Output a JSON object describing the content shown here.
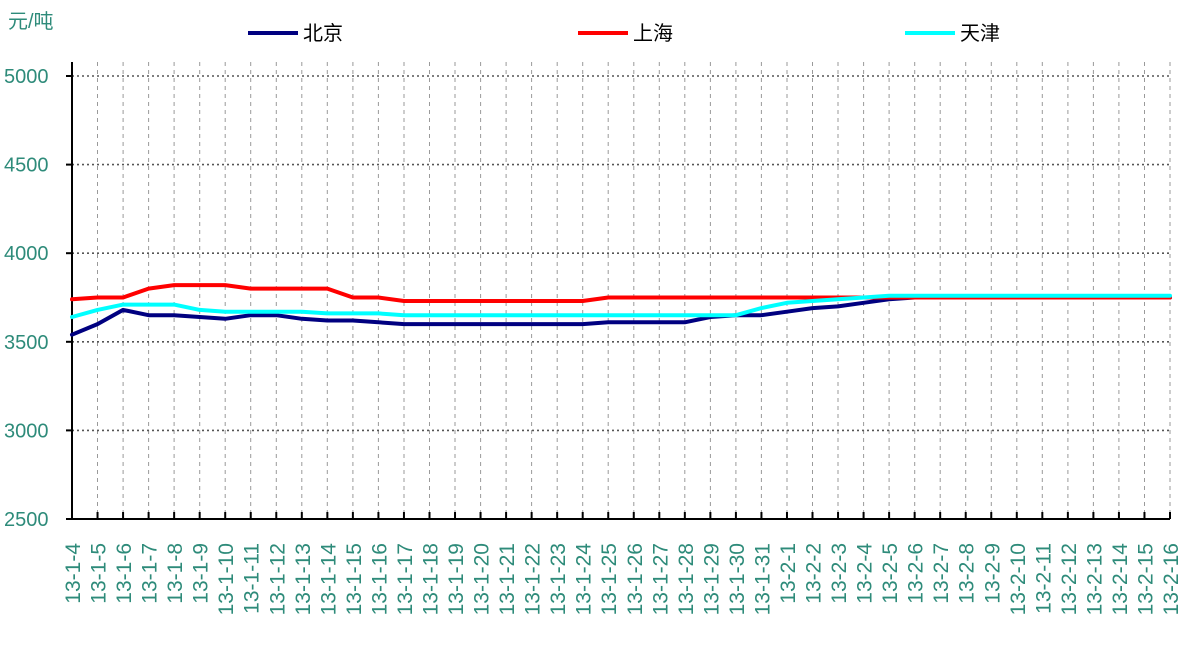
{
  "chart_data": {
    "type": "line",
    "y_unit_label": "元/吨",
    "ylim": [
      2500,
      5000
    ],
    "yticks": [
      2500,
      3000,
      3500,
      4000,
      4500,
      5000
    ],
    "grid": true,
    "legend_position": "top",
    "categories": [
      "13-1-4",
      "13-1-5",
      "13-1-6",
      "13-1-7",
      "13-1-8",
      "13-1-9",
      "13-1-10",
      "13-1-11",
      "13-1-12",
      "13-1-13",
      "13-1-14",
      "13-1-15",
      "13-1-16",
      "13-1-17",
      "13-1-18",
      "13-1-19",
      "13-1-20",
      "13-1-21",
      "13-1-22",
      "13-1-23",
      "13-1-24",
      "13-1-25",
      "13-1-26",
      "13-1-27",
      "13-1-28",
      "13-1-29",
      "13-1-30",
      "13-1-31",
      "13-2-1",
      "13-2-2",
      "13-2-3",
      "13-2-4",
      "13-2-5",
      "13-2-6",
      "13-2-7",
      "13-2-8",
      "13-2-9",
      "13-2-10",
      "13-2-11",
      "13-2-12",
      "13-2-13",
      "13-2-14",
      "13-2-15",
      "13-2-16"
    ],
    "series": [
      {
        "name": "北京",
        "color": "#000080",
        "values": [
          3540,
          3600,
          3680,
          3650,
          3650,
          3640,
          3630,
          3650,
          3650,
          3630,
          3620,
          3620,
          3610,
          3600,
          3600,
          3600,
          3600,
          3600,
          3600,
          3600,
          3600,
          3610,
          3610,
          3610,
          3610,
          3640,
          3650,
          3650,
          3670,
          3690,
          3700,
          3720,
          3740,
          3750,
          3750,
          3750,
          3750,
          3750,
          3750,
          3750,
          3750,
          3750,
          3750,
          3750
        ]
      },
      {
        "name": "上海",
        "color": "#ff0000",
        "values": [
          3740,
          3750,
          3750,
          3800,
          3820,
          3820,
          3820,
          3800,
          3800,
          3800,
          3800,
          3750,
          3750,
          3730,
          3730,
          3730,
          3730,
          3730,
          3730,
          3730,
          3730,
          3750,
          3750,
          3750,
          3750,
          3750,
          3750,
          3750,
          3750,
          3750,
          3750,
          3750,
          3750,
          3750,
          3750,
          3750,
          3750,
          3750,
          3750,
          3750,
          3750,
          3750,
          3750,
          3750
        ]
      },
      {
        "name": "天津",
        "color": "#00ffff",
        "values": [
          3640,
          3680,
          3710,
          3710,
          3710,
          3680,
          3670,
          3670,
          3670,
          3670,
          3660,
          3660,
          3660,
          3650,
          3650,
          3650,
          3650,
          3650,
          3650,
          3650,
          3650,
          3650,
          3650,
          3650,
          3650,
          3650,
          3650,
          3690,
          3720,
          3730,
          3740,
          3750,
          3760,
          3760,
          3760,
          3760,
          3760,
          3760,
          3760,
          3760,
          3760,
          3760,
          3760,
          3760
        ]
      }
    ]
  }
}
